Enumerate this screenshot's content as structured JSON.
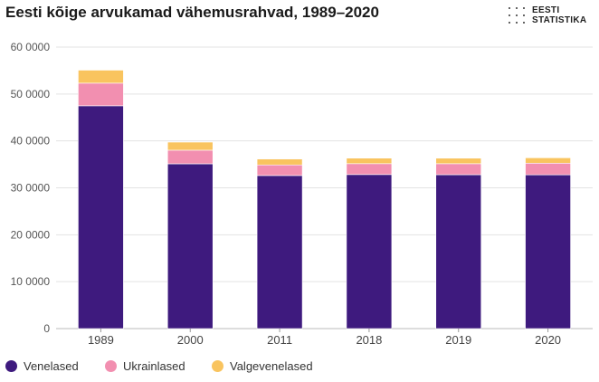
{
  "title": "Eesti kõige arvukamad vähemusrahvad, 1989–2020",
  "logo": {
    "line1": "EESTI",
    "line2": "STATISTIKA"
  },
  "colors": {
    "Venelased": "#3e1a7e",
    "Ukrainlased": "#f28fb0",
    "Valgevenelased": "#f9c45f"
  },
  "chart_data": {
    "type": "bar",
    "stacked": true,
    "title": "Eesti kõige arvukamad vähemusrahvad, 1989–2020",
    "xlabel": "",
    "ylabel": "",
    "categories": [
      "1989",
      "2000",
      "2011",
      "2018",
      "2019",
      "2020"
    ],
    "series": [
      {
        "name": "Venelased",
        "values": [
          474834,
          351178,
          326235,
          328299,
          328000,
          327802
        ]
      },
      {
        "name": "Ukrainlased",
        "values": [
          48271,
          29012,
          22573,
          23183,
          23400,
          24744
        ]
      },
      {
        "name": "Valgevenelased",
        "values": [
          27711,
          17241,
          12579,
          11828,
          11800,
          11481
        ]
      }
    ],
    "yticks": [
      {
        "value": 0,
        "label": "0"
      },
      {
        "value": 100000,
        "label": "10 0000"
      },
      {
        "value": 200000,
        "label": "20 0000"
      },
      {
        "value": 300000,
        "label": "30 0000"
      },
      {
        "value": 400000,
        "label": "40 0000"
      },
      {
        "value": 500000,
        "label": "50 0000"
      },
      {
        "value": 600000,
        "label": "60 0000"
      }
    ],
    "ylim": [
      0,
      600000
    ],
    "grid": true,
    "legend_position": "bottom-left"
  }
}
